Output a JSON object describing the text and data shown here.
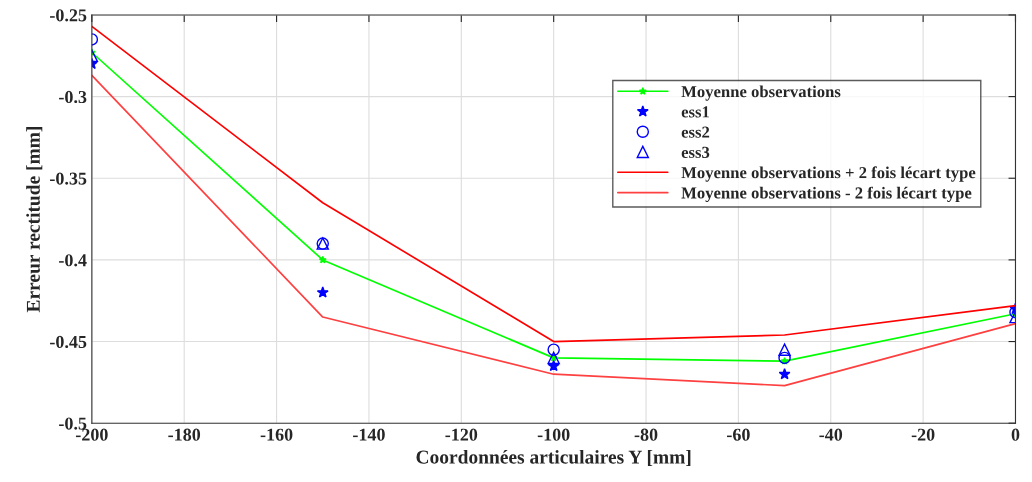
{
  "chart_data": {
    "type": "line",
    "xlabel": "Coordonnées articulaires Y [mm]",
    "ylabel": "Erreur rectitude [mm]",
    "x": [
      -200,
      -150,
      -100,
      -50,
      0
    ],
    "series": [
      {
        "name": "Moyenne observations",
        "color": "#00ff00",
        "marker": "star",
        "values": [
          -0.273,
          -0.4,
          -0.46,
          -0.462,
          -0.433
        ]
      },
      {
        "name": "ess1",
        "type": "scatter",
        "color": "#0000ff",
        "marker": "star",
        "values": [
          -0.28,
          -0.42,
          -0.465,
          -0.47,
          -0.43
        ]
      },
      {
        "name": "ess2",
        "type": "scatter",
        "color": "#0000ff",
        "marker": "circle",
        "values": [
          -0.265,
          -0.39,
          -0.455,
          -0.46,
          -0.432
        ]
      },
      {
        "name": "ess3",
        "type": "scatter",
        "color": "#0000ff",
        "marker": "triangle",
        "values": [
          -0.275,
          -0.39,
          -0.46,
          -0.455,
          -0.435
        ]
      },
      {
        "name": "Moyenne observations + 2 fois lécart type",
        "color": "#ff0000",
        "marker": "none",
        "values": [
          -0.257,
          -0.365,
          -0.45,
          -0.446,
          -0.428
        ]
      },
      {
        "name": "Moyenne observations - 2 fois lécart type",
        "color": "#ff4040",
        "marker": "none",
        "values": [
          -0.287,
          -0.435,
          -0.47,
          -0.477,
          -0.439
        ]
      }
    ],
    "xlim": [
      -200,
      0
    ],
    "xticks": [
      -200,
      -180,
      -160,
      -140,
      -120,
      -100,
      -80,
      -60,
      -40,
      -20,
      0
    ],
    "ylim": [
      -0.5,
      -0.25
    ],
    "yticks": [
      -0.5,
      -0.45,
      -0.4,
      -0.35,
      -0.3,
      -0.25
    ],
    "grid": true,
    "legend": "top right"
  }
}
